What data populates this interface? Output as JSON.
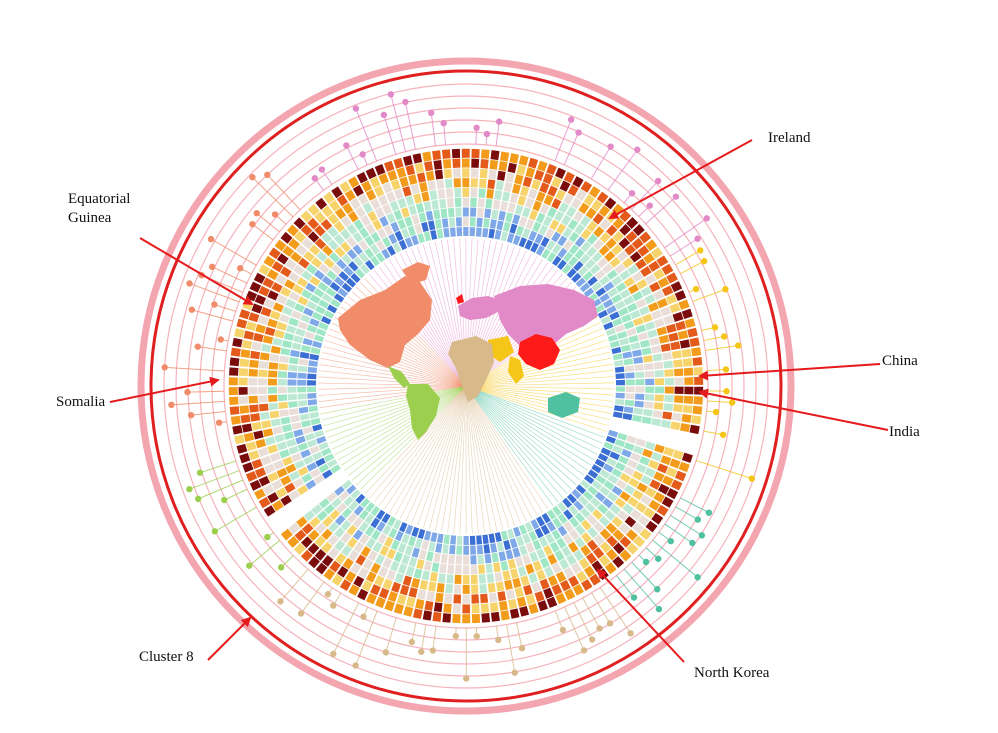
{
  "annotations": {
    "ireland": "Ireland",
    "equatorial_guinea": "Equatorial\nGuinea",
    "somalia": "Somalia",
    "china": "China",
    "india": "India",
    "cluster8": "Cluster 8",
    "north_korea": "North Korea"
  },
  "colors": {
    "arrow": "#e41a1c",
    "outer_ring": "#f4a6b0",
    "cluster_ring": "#e02020",
    "heat_low": "#3b6fd4",
    "heat_mid": "#9ee6c4",
    "heat_neutral": "#e9ded8",
    "heat_high": "#f39c1b",
    "heat_max": "#7a0c0c"
  },
  "clusters": [
    {
      "id": "americas-north",
      "color": "#f08c6a"
    },
    {
      "id": "americas-south",
      "color": "#9ccf4e"
    },
    {
      "id": "europe-asia",
      "color": "#e28ac8"
    },
    {
      "id": "east-asia",
      "color": "#f5c518"
    },
    {
      "id": "oceania",
      "color": "#4fc1a0"
    },
    {
      "id": "africa",
      "color": "#d8b98a"
    }
  ]
}
